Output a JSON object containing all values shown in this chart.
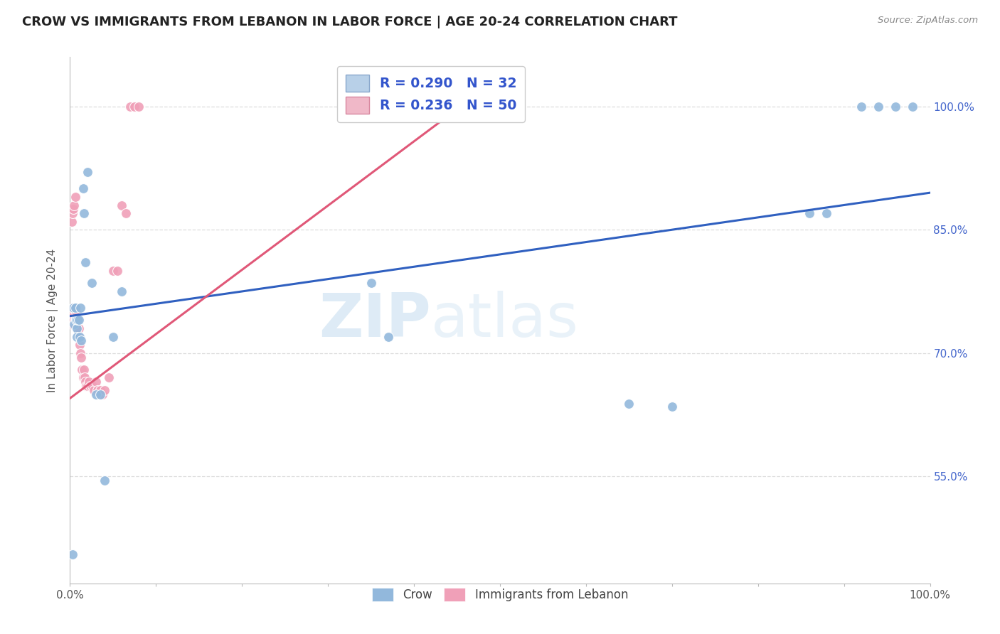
{
  "title": "CROW VS IMMIGRANTS FROM LEBANON IN LABOR FORCE | AGE 20-24 CORRELATION CHART",
  "source": "Source: ZipAtlas.com",
  "ylabel": "In Labor Force | Age 20-24",
  "crow_color": "#92b8dc",
  "lebanon_color": "#f0a0b8",
  "crow_line_color": "#3060c0",
  "lebanon_line_color": "#e05878",
  "watermark_zip": "ZIP",
  "watermark_atlas": "atlas",
  "crow_points_x": [
    0.003,
    0.004,
    0.005,
    0.006,
    0.007,
    0.008,
    0.008,
    0.009,
    0.01,
    0.011,
    0.012,
    0.013,
    0.015,
    0.016,
    0.018,
    0.02,
    0.025,
    0.03,
    0.035,
    0.04,
    0.05,
    0.06,
    0.35,
    0.37,
    0.65,
    0.7,
    0.86,
    0.88,
    0.92,
    0.94,
    0.96,
    0.98
  ],
  "crow_points_y": [
    0.455,
    0.755,
    0.735,
    0.755,
    0.74,
    0.73,
    0.72,
    0.74,
    0.74,
    0.72,
    0.755,
    0.715,
    0.9,
    0.87,
    0.81,
    0.92,
    0.785,
    0.65,
    0.65,
    0.545,
    0.72,
    0.775,
    0.785,
    0.72,
    0.638,
    0.635,
    0.87,
    0.87,
    1.0,
    1.0,
    1.0,
    1.0
  ],
  "leb_points_x": [
    0.001,
    0.002,
    0.002,
    0.003,
    0.003,
    0.004,
    0.004,
    0.005,
    0.005,
    0.006,
    0.006,
    0.007,
    0.007,
    0.008,
    0.008,
    0.009,
    0.01,
    0.01,
    0.011,
    0.012,
    0.013,
    0.014,
    0.015,
    0.016,
    0.017,
    0.018,
    0.019,
    0.02,
    0.022,
    0.024,
    0.026,
    0.028,
    0.03,
    0.032,
    0.035,
    0.038,
    0.04,
    0.045,
    0.05,
    0.055,
    0.06,
    0.065,
    0.07,
    0.075,
    0.08,
    0.002,
    0.003,
    0.004,
    0.005,
    0.006
  ],
  "leb_points_y": [
    0.74,
    0.74,
    0.735,
    0.75,
    0.74,
    0.755,
    0.745,
    0.755,
    0.74,
    0.755,
    0.74,
    0.75,
    0.74,
    0.74,
    0.73,
    0.73,
    0.73,
    0.72,
    0.71,
    0.7,
    0.695,
    0.68,
    0.67,
    0.68,
    0.67,
    0.665,
    0.66,
    0.66,
    0.665,
    0.66,
    0.66,
    0.655,
    0.665,
    0.655,
    0.655,
    0.65,
    0.655,
    0.67,
    0.8,
    0.8,
    0.88,
    0.87,
    1.0,
    1.0,
    1.0,
    0.86,
    0.87,
    0.875,
    0.88,
    0.89
  ],
  "crow_trend_x": [
    0.0,
    1.0
  ],
  "crow_trend_y": [
    0.745,
    0.895
  ],
  "leb_trend_x": [
    0.0,
    0.48
  ],
  "leb_trend_y": [
    0.645,
    1.02
  ],
  "xlim": [
    0.0,
    1.0
  ],
  "ylim": [
    0.42,
    1.06
  ],
  "yticks": [
    0.55,
    0.7,
    0.85,
    1.0
  ],
  "ytick_labels": [
    "55.0%",
    "70.0%",
    "85.0%",
    "100.0%"
  ],
  "xticks": [
    0.0,
    0.1,
    0.2,
    0.3,
    0.4,
    0.5,
    0.6,
    0.7,
    0.8,
    0.9,
    1.0
  ],
  "xtick_labels": [
    "0.0%",
    "",
    "",
    "",
    "",
    "",
    "",
    "",
    "",
    "",
    "100.0%"
  ],
  "legend1_r1": "R = 0.290",
  "legend1_n1": "N = 32",
  "legend1_r2": "R = 0.236",
  "legend1_n2": "N = 50",
  "title_fontsize": 13,
  "axis_label_color": "#555555",
  "right_tick_color": "#4466cc",
  "grid_color": "#dddddd",
  "title_color": "#222222"
}
